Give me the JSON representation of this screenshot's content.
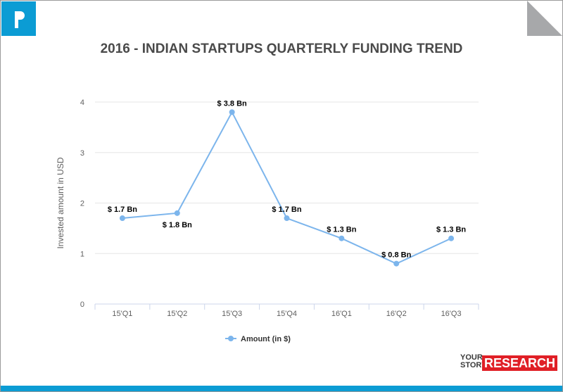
{
  "brand": {
    "logo_letter": "P",
    "footer_line1": "YOUR",
    "footer_line2": "STORY",
    "footer_highlight": "RESEARCH",
    "accent": "#0b9cd4",
    "highlight_color": "#e01f26"
  },
  "chart_data": {
    "type": "line",
    "title": "2016 - INDIAN STARTUPS QUARTERLY FUNDING TREND",
    "ylabel": "Invested amount in USD",
    "xlabel": "",
    "categories": [
      "15'Q1",
      "15'Q2",
      "15'Q3",
      "15'Q4",
      "16'Q1",
      "16'Q2",
      "16'Q3"
    ],
    "series": [
      {
        "name": "Amount (in $)",
        "values": [
          1.7,
          1.8,
          3.8,
          1.7,
          1.3,
          0.8,
          1.3
        ],
        "color": "#7cb5ec"
      }
    ],
    "data_labels": [
      "$ 1.7 Bn",
      "$ 1.8 Bn",
      "$ 3.8 Bn",
      "$ 1.7 Bn",
      "$ 1.3 Bn",
      "$ 0.8 Bn",
      "$ 1.3 Bn"
    ],
    "yticks": [
      "0",
      "1",
      "2",
      "3",
      "4"
    ],
    "ylim": [
      0,
      4
    ],
    "grid": true,
    "legend": "bottom"
  }
}
